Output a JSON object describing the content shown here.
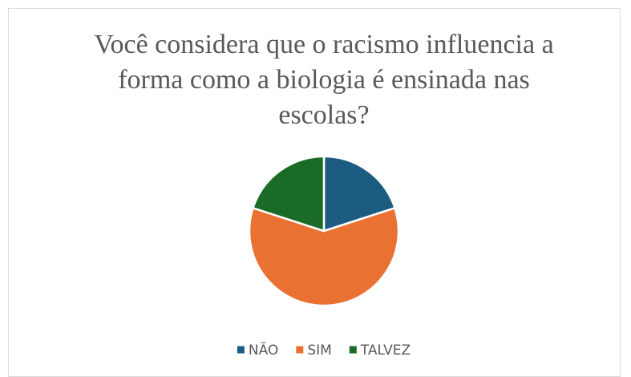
{
  "chart_data": {
    "type": "pie",
    "title": "Você considera que o racismo influencia a forma como a biologia é ensinada nas escolas?",
    "categories": [
      "NÃO",
      "SIM",
      "TALVEZ"
    ],
    "values": [
      20,
      60,
      20
    ],
    "colors": [
      "#1b5c80",
      "#e97233",
      "#1a6b25"
    ],
    "legend": "bottom"
  }
}
